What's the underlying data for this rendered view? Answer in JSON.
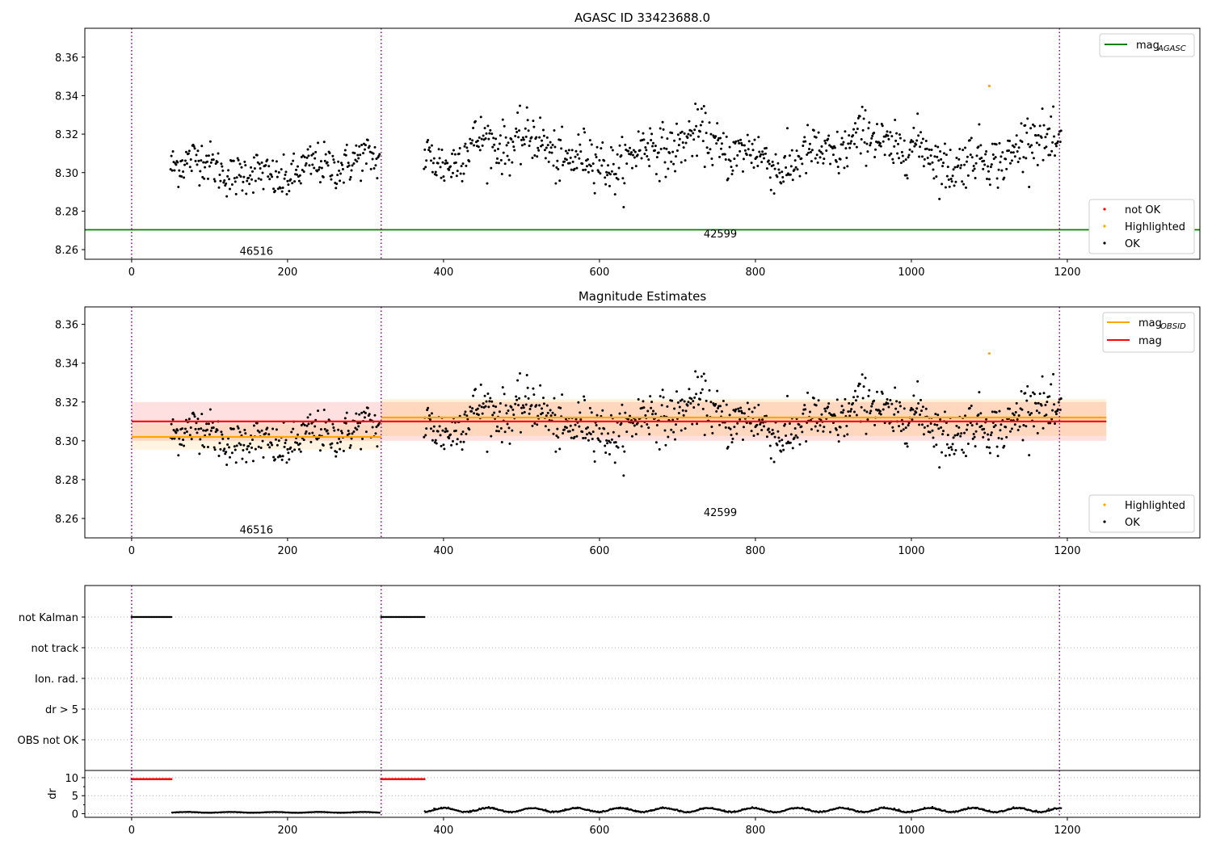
{
  "chart_data": [
    {
      "type": "scatter",
      "title": "AGASC ID 33423688.0",
      "xlabel": "",
      "ylabel": "",
      "xlim": [
        -60,
        1370
      ],
      "ylim": [
        8.255,
        8.375
      ],
      "xticks": [
        0,
        200,
        400,
        600,
        800,
        1000,
        1200
      ],
      "yticks": [
        8.26,
        8.28,
        8.3,
        8.32,
        8.34,
        8.36
      ],
      "ytick_labels": [
        "8.26",
        "8.28",
        "8.30",
        "8.32",
        "8.34",
        "8.36"
      ],
      "xtick_labels": [
        "0",
        "200",
        "400",
        "600",
        "800",
        "1000",
        "1200"
      ],
      "obs_boundaries": [
        0,
        320,
        1190
      ],
      "obs_labels": [
        {
          "text": "46516",
          "x": 160,
          "y": 8.259
        },
        {
          "text": "42599",
          "x": 755,
          "y": 8.268
        }
      ],
      "lines": [
        {
          "name": "mag",
          "sub": "AGASC",
          "y": 8.2703,
          "x": [
            -60,
            1370
          ],
          "color": "#008000"
        }
      ],
      "legend_lines": [
        {
          "label": "mag",
          "sub": "AGASC",
          "color": "#008000"
        }
      ],
      "legend_points": [
        {
          "label": "not OK",
          "color": "#ff0000"
        },
        {
          "label": "Highlighted",
          "color": "#ffa500"
        },
        {
          "label": "OK",
          "color": "#000000"
        }
      ],
      "segments": [
        {
          "x0": 50,
          "x1": 318,
          "mean": 8.302,
          "amp": 0.007,
          "noise": 0.0055
        },
        {
          "x0": 375,
          "x1": 1192,
          "mean": 8.311,
          "amp": 0.01,
          "noise": 0.0065
        }
      ],
      "highlight": {
        "x": 1100,
        "y": 8.345
      }
    },
    {
      "type": "scatter",
      "title": "Magnitude Estimates",
      "xlabel": "",
      "ylabel": "",
      "xlim": [
        -60,
        1370
      ],
      "ylim": [
        8.25,
        8.369
      ],
      "xticks": [
        0,
        200,
        400,
        600,
        800,
        1000,
        1200
      ],
      "yticks": [
        8.26,
        8.28,
        8.3,
        8.32,
        8.34,
        8.36
      ],
      "ytick_labels": [
        "8.26",
        "8.28",
        "8.30",
        "8.32",
        "8.34",
        "8.36"
      ],
      "xtick_labels": [
        "0",
        "200",
        "400",
        "600",
        "800",
        "1000",
        "1200"
      ],
      "obs_boundaries": [
        0,
        320,
        1190
      ],
      "obs_labels": [
        {
          "text": "46516",
          "x": 160,
          "y": 8.254
        },
        {
          "text": "42599",
          "x": 755,
          "y": 8.263
        }
      ],
      "bands": [
        {
          "x0": 0,
          "x1": 1250,
          "y0": 8.3,
          "y1": 8.32,
          "color": "#ff0000",
          "opacity": 0.12
        },
        {
          "x0": 0,
          "x1": 320,
          "y0": 8.2955,
          "y1": 8.3085,
          "color": "#ffa500",
          "opacity": 0.12
        },
        {
          "x0": 320,
          "x1": 1250,
          "y0": 8.3025,
          "y1": 8.3215,
          "color": "#ffa500",
          "opacity": 0.15
        }
      ],
      "lines": [
        {
          "name": "mag",
          "sub": "OBSID",
          "color": "#ffa500",
          "segments": [
            {
              "x0": 0,
              "x1": 320,
              "y": 8.302
            },
            {
              "x0": 320,
              "x1": 1250,
              "y": 8.312
            }
          ]
        },
        {
          "name": "mag",
          "sub": "",
          "color": "#ff0000",
          "segments": [
            {
              "x0": 0,
              "x1": 1250,
              "y": 8.31
            }
          ]
        }
      ],
      "legend_lines": [
        {
          "label": "mag",
          "sub": "OBSID",
          "color": "#ffa500"
        },
        {
          "label": "mag",
          "sub": "",
          "color": "#ff0000"
        }
      ],
      "legend_points": [
        {
          "label": "Highlighted",
          "color": "#ffa500"
        },
        {
          "label": "OK",
          "color": "#000000"
        }
      ]
    },
    {
      "type": "scatter",
      "title": "",
      "xlim": [
        -60,
        1370
      ],
      "flag_rows": [
        "not Kalman",
        "not track",
        "Ion. rad.",
        "dr > 5",
        "OBS not OK"
      ],
      "flag_spans": [
        {
          "row": "not Kalman",
          "x0": 0,
          "x1": 52
        },
        {
          "row": "not Kalman",
          "x0": 320,
          "x1": 376
        }
      ],
      "obs_boundaries": [
        0,
        320,
        1190
      ]
    },
    {
      "type": "line",
      "ylabel": "dr",
      "xlim": [
        -60,
        1370
      ],
      "ylim": [
        -1,
        12
      ],
      "yticks": [
        0,
        5,
        10
      ],
      "ytick_labels": [
        "0",
        "5",
        "10"
      ],
      "xticks": [
        0,
        200,
        400,
        600,
        800,
        1000,
        1200
      ],
      "xtick_labels": [
        "0",
        "200",
        "400",
        "600",
        "800",
        "1000",
        "1200"
      ],
      "obs_boundaries": [
        0,
        320,
        1190
      ],
      "red_spans": [
        {
          "x0": 0,
          "x1": 52,
          "y": 9.6
        },
        {
          "x0": 320,
          "x1": 376,
          "y": 9.6
        }
      ],
      "dr_segments": [
        {
          "x0": 52,
          "x1": 318,
          "base": 0.35,
          "amp": 0.15
        },
        {
          "x0": 376,
          "x1": 1192,
          "base": 0.9,
          "amp": 0.8
        }
      ]
    }
  ]
}
